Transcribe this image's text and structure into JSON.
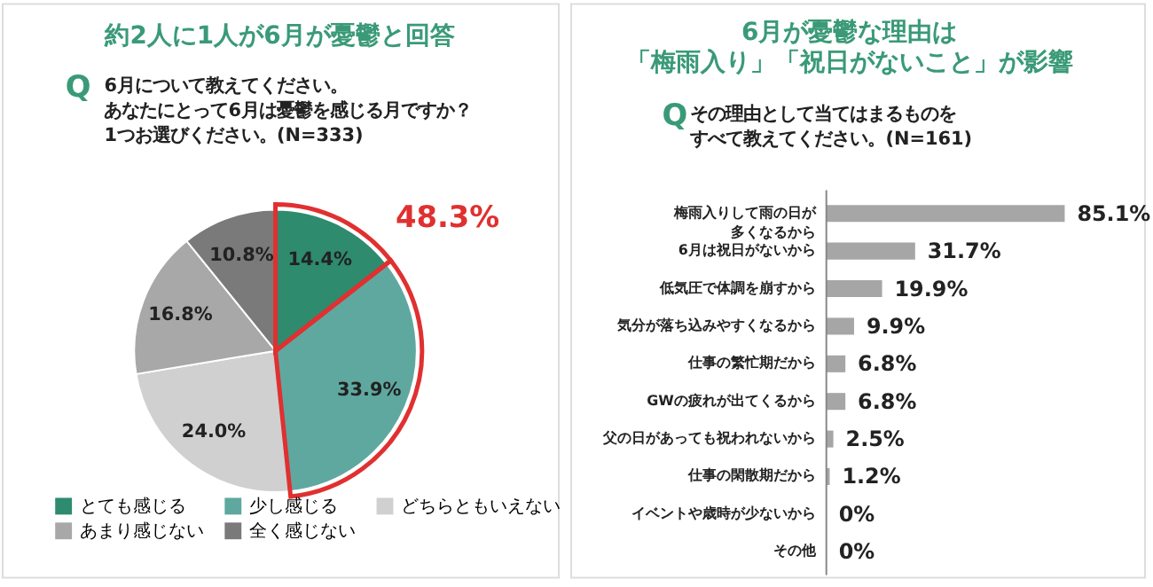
{
  "chart_data": [
    {
      "type": "pie",
      "title": "約2人に1人が6月が憂鬱と回答",
      "subtitle": "6月について教えてください。あなたにとって6月は憂鬱を感じる月ですか？1つお選びください。(N=333)",
      "categories": [
        "とても感じる",
        "少し感じる",
        "どちらともいえない",
        "あまり感じない",
        "全く感じない"
      ],
      "values": [
        14.4,
        33.9,
        24.0,
        16.8,
        10.8
      ],
      "colors": [
        "#2e8b6e",
        "#5fa8a0",
        "#d0d0d0",
        "#a8a8a8",
        "#7a7a7a"
      ],
      "value_labels": [
        "14.4%",
        "33.9%",
        "24.0%",
        "16.8%",
        "10.8%"
      ],
      "annotations": [
        "Q",
        "48.3%"
      ],
      "legend": "bottom"
    },
    {
      "type": "bar",
      "orientation": "horizontal",
      "title": "6月が憂鬱な理由は「梅雨入り」「祝日がないこと」が影響",
      "subtitle": "その理由として当てはまるものをすべて教えてください。(N=161)",
      "categories": [
        "梅雨入りして雨の日が多くなるから",
        "6月は祝日がないから",
        "低気圧で体調を崩すから",
        "気分が落ち込みやすくなるから",
        "仕事の繁忙期だから",
        "GWの疲れが出てくるから",
        "父の日があっても祝われないから",
        "仕事の閑散期だから",
        "イベントや歳時が少ないから",
        "その他"
      ],
      "values": [
        85.1,
        31.7,
        19.9,
        9.9,
        6.8,
        6.8,
        2.5,
        1.2,
        0,
        0
      ],
      "color": "#a6a6a6",
      "value_labels": [
        "85.1%",
        "31.7%",
        "19.9%",
        "9.9%",
        "6.8%",
        "6.8%",
        "2.5%",
        "1.2%",
        "0%",
        "0%"
      ],
      "annotations": [
        "Q"
      ],
      "tick_labels": "y"
    }
  ]
}
